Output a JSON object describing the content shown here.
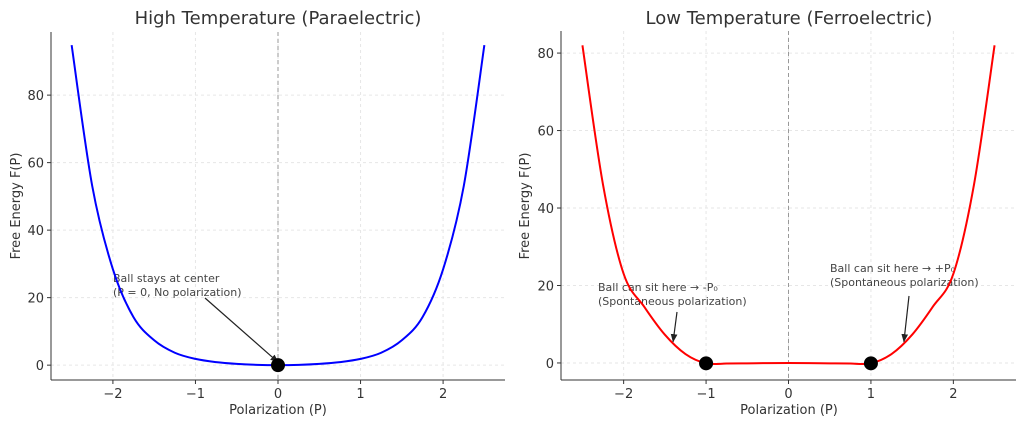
{
  "chart_data": [
    {
      "type": "line",
      "title": "High Temperature (Paraelectric)",
      "xlabel": "Polarization (P)",
      "ylabel": "Free Energy F(P)",
      "xlim": [
        -2.75,
        2.75
      ],
      "ylim": [
        -4.4,
        98.7
      ],
      "xticks": [
        -2,
        -1,
        0,
        1,
        2
      ],
      "yticks": [
        0,
        20,
        40,
        60,
        80
      ],
      "grid": true,
      "series": [
        {
          "color": "#0000ff",
          "x": [
            -2.5,
            -2.25,
            -2,
            -1.75,
            -1.5,
            -1.25,
            -1,
            -0.75,
            -0.5,
            -0.25,
            0,
            0.25,
            0.5,
            0.75,
            1,
            1.25,
            1.5,
            1.75,
            2,
            2.25,
            2.5
          ],
          "y": [
            94.8,
            53.0,
            28.4,
            14.2,
            7.37,
            3.68,
            1.85,
            0.9,
            0.38,
            0.09,
            0,
            0.09,
            0.38,
            0.9,
            1.85,
            3.68,
            7.37,
            14.2,
            28.4,
            53.0,
            94.8
          ]
        }
      ],
      "vline": {
        "x": 0,
        "style": "dashed",
        "color": "#999999"
      },
      "markers": [
        {
          "x": 0,
          "y": 0
        }
      ],
      "annotations": [
        {
          "lines": [
            "Ball stays at center",
            "(P = 0, No polarization)"
          ],
          "arrow_to": {
            "x": 0,
            "y": 0
          }
        }
      ]
    },
    {
      "type": "line",
      "title": "Low Temperature (Ferroelectric)",
      "xlabel": "Polarization (P)",
      "ylabel": "Free Energy F(P)",
      "xlim": [
        -2.76,
        2.76
      ],
      "ylim": [
        -4.4,
        85.7
      ],
      "xticks": [
        -2,
        -1,
        0,
        1,
        2
      ],
      "yticks": [
        0,
        20,
        40,
        60,
        80
      ],
      "grid": true,
      "series": [
        {
          "color": "#ff0000",
          "x": [
            -2.5,
            -2.25,
            -2,
            -1.75,
            -1.5,
            -1.25,
            -1,
            -0.75,
            -0.5,
            -0.25,
            0,
            0.25,
            0.5,
            0.75,
            1,
            1.25,
            1.5,
            1.75,
            2,
            2.25,
            2.5
          ],
          "y": [
            82,
            46,
            23,
            14.5,
            7.3,
            2.3,
            -0.1,
            -0.15,
            -0.1,
            -0.03,
            0,
            -0.03,
            -0.1,
            -0.15,
            -0.1,
            2.3,
            7.3,
            14.5,
            23,
            46,
            82
          ]
        }
      ],
      "vline": {
        "x": 0,
        "style": "dashed",
        "color": "#999999"
      },
      "markers": [
        {
          "x": -1,
          "y": -0.1
        },
        {
          "x": 1,
          "y": -0.1
        }
      ],
      "annotations": [
        {
          "lines": [
            "Ball can sit here → -P₀",
            "(Spontaneous polarization)"
          ],
          "arrow_to": {
            "x": -1.4,
            "y": 5.5
          }
        },
        {
          "lines": [
            "Ball can sit here → +P₀",
            "(Spontaneous polarization)"
          ],
          "arrow_to": {
            "x": 1.4,
            "y": 5.5
          }
        }
      ]
    }
  ]
}
